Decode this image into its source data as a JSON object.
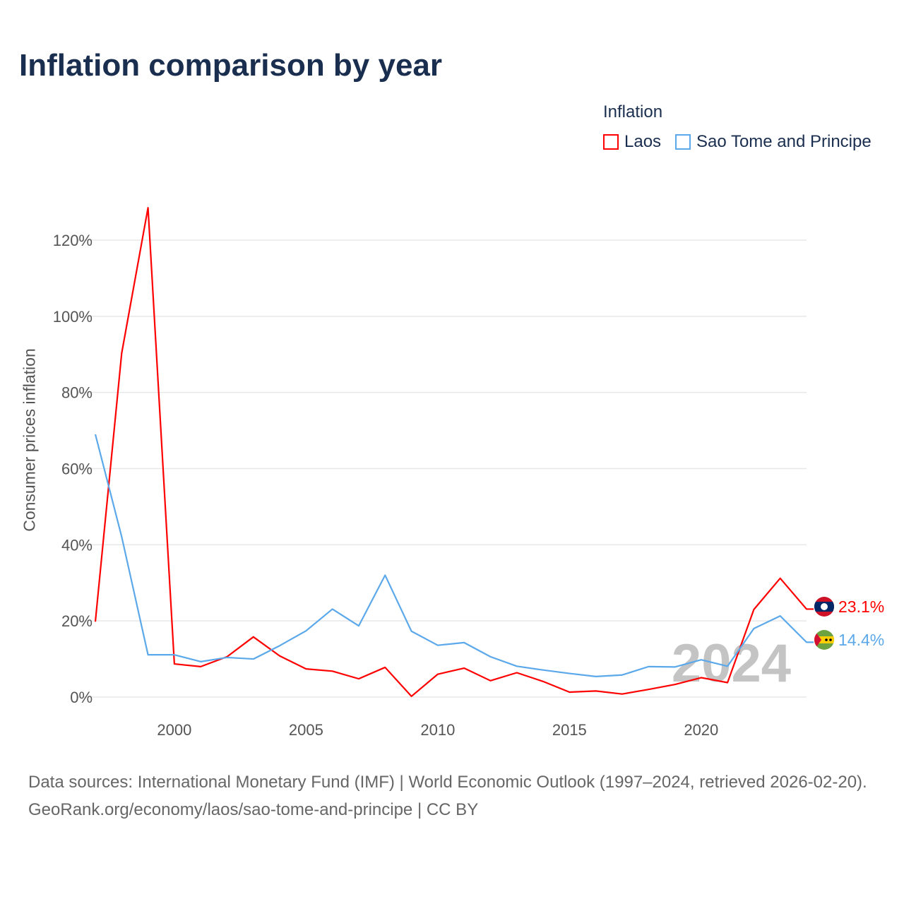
{
  "chart_data": {
    "type": "line",
    "title": "Inflation comparison by year",
    "legend_title": "Inflation",
    "legend_position": "top-right",
    "ylabel": "Consumer prices inflation",
    "xlabel": "",
    "xlim": [
      1997,
      2024
    ],
    "ylim": [
      0,
      120
    ],
    "x_ticks": [
      "2000",
      "2005",
      "2010",
      "2015",
      "2020"
    ],
    "y_ticks": [
      "0%",
      "20%",
      "40%",
      "60%",
      "80%",
      "100%",
      "120%"
    ],
    "grid": true,
    "year_watermark": "2024",
    "x": [
      1997,
      1998,
      1999,
      2000,
      2001,
      2002,
      2003,
      2004,
      2005,
      2006,
      2007,
      2008,
      2009,
      2010,
      2011,
      2012,
      2013,
      2014,
      2015,
      2016,
      2017,
      2018,
      2019,
      2020,
      2021,
      2022,
      2023,
      2024
    ],
    "series": [
      {
        "name": "Laos",
        "color": "#ff0000",
        "end_label": "23.1%",
        "values": [
          19.8,
          90.3,
          128.5,
          8.7,
          8.0,
          10.6,
          15.8,
          10.8,
          7.4,
          6.8,
          4.8,
          7.8,
          0.2,
          6.0,
          7.6,
          4.3,
          6.4,
          4.1,
          1.3,
          1.6,
          0.8,
          2.0,
          3.3,
          5.1,
          3.8,
          23.0,
          31.2,
          23.1
        ]
      },
      {
        "name": "Sao Tome and Principe",
        "color": "#5ba8ea",
        "end_label": "14.4%",
        "values": [
          69.0,
          42.1,
          11.1,
          11.1,
          9.3,
          10.4,
          10.0,
          13.5,
          17.4,
          23.1,
          18.7,
          32.0,
          17.3,
          13.6,
          14.3,
          10.6,
          8.1,
          7.1,
          6.2,
          5.4,
          5.8,
          8.0,
          7.9,
          9.8,
          8.1,
          18.0,
          21.3,
          14.4
        ]
      }
    ]
  },
  "footer": {
    "sources": "Data sources: International Monetary Fund (IMF) | World Economic Outlook (1997–2024, retrieved 2026-02-20).",
    "link": "GeoRank.org/economy/laos/sao-tome-and-principe | CC BY"
  }
}
